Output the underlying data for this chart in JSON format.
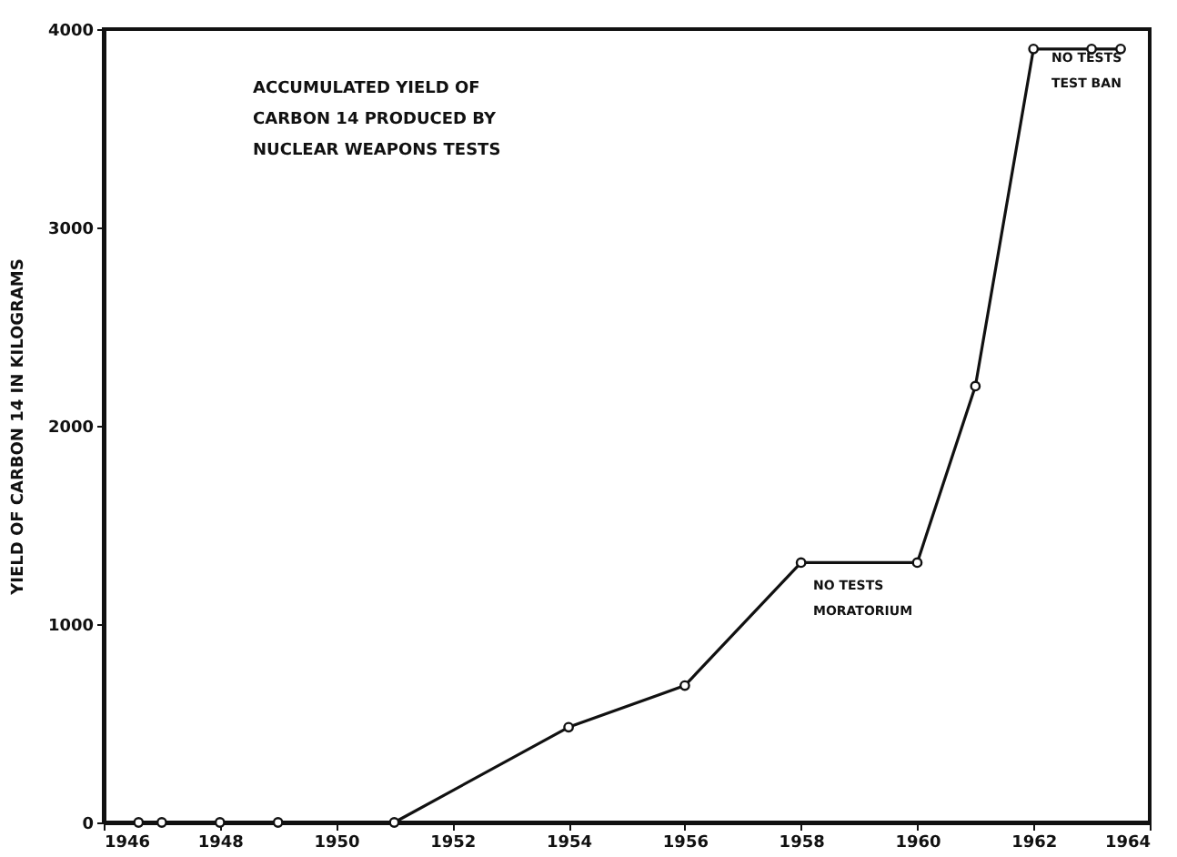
{
  "chart_data": {
    "type": "line",
    "title": "ACCUMULATED YIELD OF\nCARBON 14 PRODUCED BY\nNUCLEAR WEAPONS TESTS",
    "ylabel": "YIELD OF CARBON 14 IN KILOGRAMS",
    "x": [
      1946.6,
      1947,
      1948,
      1949,
      1951,
      1954,
      1956,
      1958,
      1960,
      1961,
      1962,
      1963,
      1963.5
    ],
    "series": [
      {
        "color": "#111111",
        "values": [
          0,
          0,
          0,
          0,
          0,
          480,
          690,
          1310,
          1310,
          2200,
          3900,
          3900,
          3900
        ]
      }
    ],
    "xlim": [
      1946,
      1964
    ],
    "xticks": [
      1946,
      1948,
      1950,
      1952,
      1954,
      1956,
      1958,
      1960,
      1962,
      1964
    ],
    "ylim": [
      0,
      4000
    ],
    "yticks": [
      0,
      1000,
      2000,
      3000,
      4000
    ],
    "grid": false,
    "marker": "circle",
    "line_style": "solid",
    "annotations": [
      "NO TESTS\nMORATORIUM",
      "NO TESTS\nTEST BAN"
    ]
  }
}
